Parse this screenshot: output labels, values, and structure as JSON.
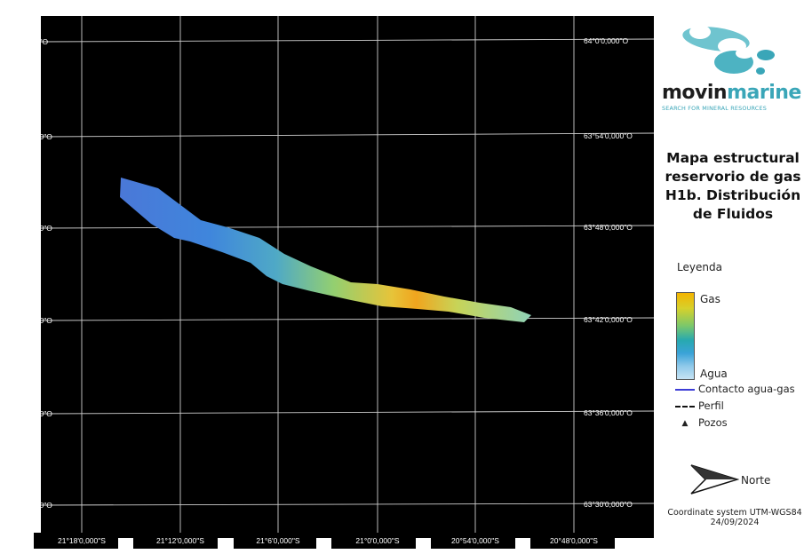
{
  "map": {
    "background": "#000000",
    "grid_color": "#cfcfcf",
    "longitude_labels": [
      "21°18'0,000\"S",
      "21°12'0,000\"S",
      "21°6'0,000\"S",
      "21°0'0,000\"S",
      "20°54'0,000\"S",
      "20°48'0,000\"S"
    ],
    "latitude_labels": [
      "64°0'0,000\"O",
      "63°54'0,000\"O",
      "63°48'0,000\"O",
      "63°42'0,000\"O",
      "63°36'0,000\"O",
      "63°30'0,000\"O"
    ],
    "reservoir_gradient": [
      "#4a78d8",
      "#3f8fe0",
      "#55b2c2",
      "#9fd36a",
      "#e7c23a",
      "#f2a21a",
      "#b6d86a",
      "#8fd1b4"
    ]
  },
  "logo": {
    "brand_dark": "movin",
    "brand_light": "marine",
    "tagline": "SEARCH FOR MINERAL RESOURCES",
    "color": "#3aa6b8"
  },
  "title": "Mapa estructural reservorio de gas H1b. Distribución de Fluidos",
  "legend": {
    "heading": "Leyenda",
    "gas": "Gas",
    "agua": "Agua",
    "contacto": "Contacto agua-gas",
    "perfil": "Perfil",
    "pozos": "Pozos",
    "contact_color": "#3d3dd6"
  },
  "north_label": "Norte",
  "coordinate_system": "Coordinate system UTM-WGS84",
  "date": "24/09/2024"
}
